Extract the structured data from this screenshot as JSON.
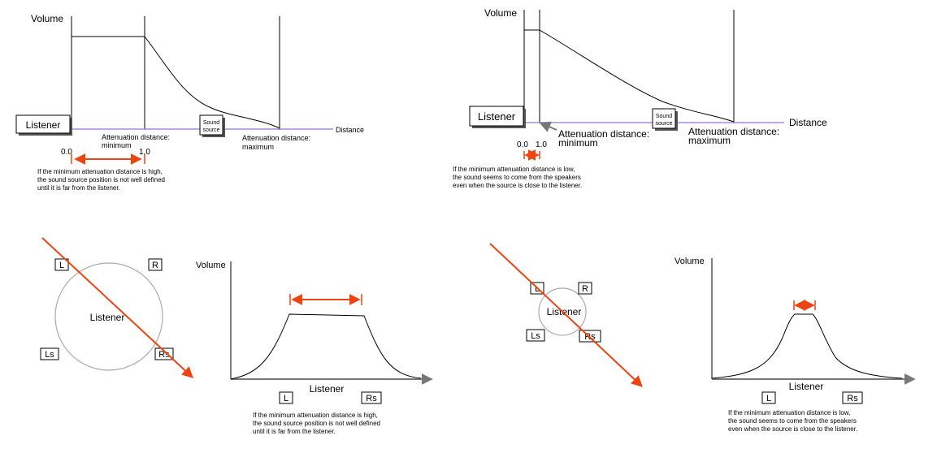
{
  "top_left": {
    "volume_label": "Volume",
    "listener_label": "Listener",
    "sound_source_line1": "Sound",
    "sound_source_line2": "source",
    "min_label_line1": "Attenuation distance:",
    "min_label_line2": "minimum",
    "max_label_line1": "Attenuation distance:",
    "max_label_line2": "maximum",
    "distance_label": "Distance",
    "tick_start": "0.0",
    "tick_end": "1.0",
    "caption": [
      "If the minimum attenuation distance is high,",
      "the sound source position is not well defined",
      "until it is far from the listener."
    ]
  },
  "top_right": {
    "volume_label": "Volume",
    "listener_label": "Listener",
    "sound_source_line1": "Sound",
    "sound_source_line2": "source",
    "min_label_line1": "Attenuation distance:",
    "min_label_line2": "minimum",
    "max_label_line1": "Attenuation distance:",
    "max_label_line2": "maximum",
    "distance_label": "Distance",
    "tick_start": "0.0",
    "tick_end": "1.0",
    "caption": [
      "If the minimum attenuation distance is low,",
      "the sound seems to come from the speakers",
      "even when the source is close to the listener."
    ]
  },
  "bottom_left": {
    "speakers": {
      "L": "L",
      "R": "R",
      "Ls": "Ls",
      "Rs": "Rs"
    },
    "listener_label": "Listener",
    "volume_label": "Volume",
    "x_label": "Listener",
    "axis_speakers": {
      "L": "L",
      "Rs": "Rs"
    },
    "caption": [
      "If the minimum attenuation distance is high,",
      "the sound source position is not well defined",
      "until it is far from the listener."
    ]
  },
  "bottom_right": {
    "speakers": {
      "L": "L",
      "R": "R",
      "Ls": "Ls",
      "Rs": "Rs"
    },
    "listener_label": "Listener",
    "volume_label": "Volume",
    "x_label": "Listener",
    "axis_speakers": {
      "L": "L",
      "Rs": "Rs"
    },
    "caption": [
      "If the minimum attenuation distance is low,",
      "the sound seems to come from the speakers",
      "even when the source is close to the listener."
    ]
  },
  "colors": {
    "accent_arrow": "#ee4411",
    "distance_line": "#a48ce0",
    "circle": "#aaaaaa",
    "axis_arrow": "#777777"
  }
}
